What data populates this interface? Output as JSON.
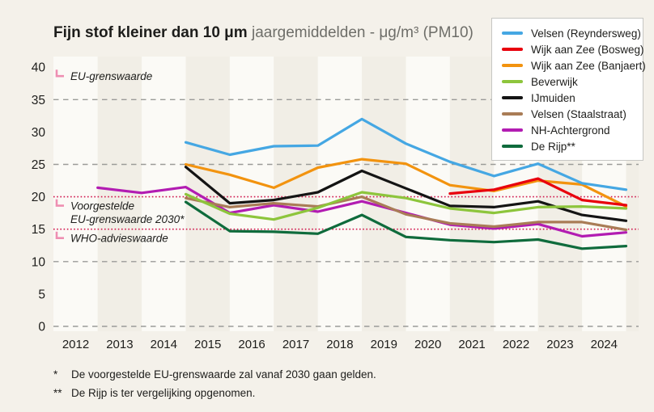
{
  "header": {
    "title_bold": "Fijn stof kleiner dan 10 μm",
    "title_rest": "jaargemiddelden - μg/m³ (PM10)"
  },
  "chart_data": {
    "type": "line",
    "title": "Fijn stof kleiner dan 10 μm jaargemiddelden - μg/m³ (PM10)",
    "unit": "μg/m³",
    "x_years": [
      2012,
      2013,
      2014,
      2015,
      2016,
      2017,
      2018,
      2019,
      2020,
      2021,
      2022,
      2023,
      2024
    ],
    "ylim": [
      0,
      40
    ],
    "yticks": [
      0,
      5,
      10,
      15,
      20,
      25,
      30,
      35,
      40
    ],
    "gridlines_dashed_at": [
      0,
      10,
      25,
      35
    ],
    "reference_lines": [
      {
        "value": 40,
        "lines": [
          "EU-grenswaarde"
        ],
        "show_line": false
      },
      {
        "value": 20,
        "lines": [
          "Voorgestelde",
          "EU-grenswaarde 2030*"
        ],
        "show_line": true
      },
      {
        "value": 15,
        "lines": [
          "WHO-advieswaarde"
        ],
        "show_line": true
      }
    ],
    "legend_position": "top-right",
    "series": [
      {
        "name": "Velsen (Reyndersweg)",
        "color": "#45a7e3",
        "values": [
          null,
          null,
          28.4,
          26.5,
          27.8,
          27.9,
          32.0,
          28.2,
          25.4,
          23.2,
          25.1,
          22.1,
          21.1
        ]
      },
      {
        "name": "Wijk aan Zee (Bosweg)",
        "color": "#e8000d",
        "values": [
          null,
          null,
          null,
          null,
          null,
          null,
          null,
          null,
          20.5,
          21.1,
          22.8,
          19.5,
          18.7
        ]
      },
      {
        "name": "Wijk aan Zee (Banjaert)",
        "color": "#f2930f",
        "values": [
          null,
          null,
          25.0,
          23.4,
          21.4,
          24.5,
          25.8,
          25.1,
          21.8,
          20.9,
          22.5,
          21.9,
          18.5
        ]
      },
      {
        "name": "Beverwijk",
        "color": "#8dc53c",
        "values": [
          null,
          null,
          20.4,
          17.4,
          16.5,
          18.3,
          20.7,
          19.8,
          18.2,
          17.5,
          18.4,
          18.5,
          18.2
        ]
      },
      {
        "name": "IJmuiden",
        "color": "#141414",
        "values": [
          null,
          null,
          24.6,
          19.0,
          19.5,
          20.7,
          24.0,
          21.3,
          18.6,
          18.4,
          19.3,
          17.2,
          16.3
        ]
      },
      {
        "name": "Velsen (Staalstraat)",
        "color": "#a97c56",
        "values": [
          null,
          null,
          19.8,
          18.4,
          19.0,
          18.5,
          20.0,
          17.3,
          15.9,
          15.4,
          16.1,
          16.1,
          14.9
        ]
      },
      {
        "name": "NH-Achtergrond",
        "color": "#b21cb2",
        "values": [
          21.4,
          20.6,
          21.5,
          17.5,
          18.7,
          17.7,
          19.3,
          17.5,
          15.7,
          15.1,
          15.8,
          13.9,
          14.5
        ]
      },
      {
        "name": "De Rijp**",
        "color": "#0f6b3c",
        "values": [
          null,
          null,
          19.2,
          14.7,
          14.6,
          14.3,
          17.2,
          13.8,
          13.3,
          13.0,
          13.4,
          12.0,
          12.4
        ]
      }
    ]
  },
  "colors": {
    "page_background": "#f4f1ea",
    "band_light": "#fbfaf6",
    "band_beige": "#f1eee6",
    "gridline_gray": "#9b9b98",
    "reference_red": "#d0154b",
    "reference_marker_pink": "#ee8fb2",
    "text_dark": "#1d1d1b"
  },
  "footnotes": [
    {
      "marker": "*",
      "text": "De voorgestelde EU-grenswaarde zal vanaf 2030 gaan gelden."
    },
    {
      "marker": "**",
      "text": "De Rijp is ter vergelijking opgenomen."
    }
  ]
}
